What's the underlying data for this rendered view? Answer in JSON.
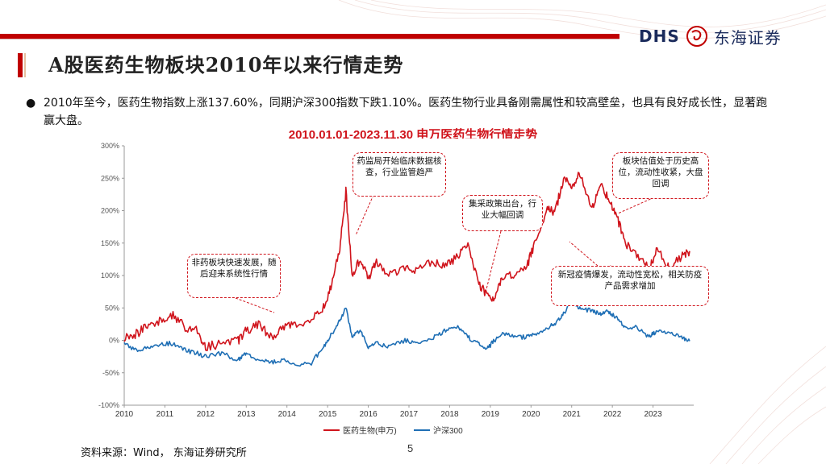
{
  "header": {
    "logo_latin": "DHS",
    "logo_chinese": "东海证券",
    "title": "A股医药生物板块2010年以来行情走势"
  },
  "bullet": {
    "symbol": "●",
    "text": "2010年至今，医药生物指数上涨137.60%，同期沪深300指数下跌1.10%。医药生物行业具备刚需属性和较高壁垒，也具有良好成长性，显著跑赢大盘。"
  },
  "callouts": {
    "c1": "非药板块快速发展，随后迎来系统性行情",
    "c2": "药监局开始临床数据核查，行业监管趋严",
    "c3": "集采政策出台，行业大幅回调",
    "c4": "板块估值处于历史高位，流动性收紧，大盘回调",
    "c5": "新冠疫情爆发，流动性宽松，相关防疫产品需求增加"
  },
  "footer": {
    "source": "资料来源：Wind， 东海证券研究所",
    "page": "5"
  },
  "colors": {
    "red": "#d0141c",
    "blue": "#1f6fb5",
    "brand_navy": "#1b2b5c"
  },
  "chart_data": {
    "type": "line",
    "title": "2010.01.01-2023.11.30 申万医药生物行情走势",
    "xlabel": "",
    "ylabel": "",
    "x_ticks": [
      "2010",
      "2011",
      "2012",
      "2013",
      "2014",
      "2015",
      "2016",
      "2017",
      "2018",
      "2019",
      "2020",
      "2021",
      "2022",
      "2023"
    ],
    "y_ticks": [
      "300%",
      "250%",
      "200%",
      "150%",
      "100%",
      "50%",
      "0%",
      "-50%",
      "-100%"
    ],
    "ylim": [
      -100,
      300
    ],
    "xlim": [
      2010.0,
      2024.0
    ],
    "legend": [
      "医药生物(申万)",
      "沪深300"
    ],
    "legend_position": "bottom",
    "series": [
      {
        "name": "医药生物(申万)",
        "x": [
          2010.0,
          2010.3,
          2010.6,
          2010.9,
          2011.2,
          2011.5,
          2011.8,
          2012.0,
          2012.4,
          2012.8,
          2013.0,
          2013.3,
          2013.6,
          2013.9,
          2014.2,
          2014.6,
          2014.9,
          2015.1,
          2015.3,
          2015.45,
          2015.6,
          2015.8,
          2016.0,
          2016.2,
          2016.5,
          2016.9,
          2017.2,
          2017.6,
          2017.9,
          2018.2,
          2018.45,
          2018.7,
          2018.9,
          2019.1,
          2019.3,
          2019.6,
          2019.9,
          2020.1,
          2020.4,
          2020.6,
          2020.8,
          2021.0,
          2021.2,
          2021.5,
          2021.7,
          2021.9,
          2022.1,
          2022.3,
          2022.6,
          2022.9,
          2023.1,
          2023.4,
          2023.7,
          2023.9
        ],
        "values": [
          5,
          10,
          25,
          30,
          40,
          20,
          15,
          -10,
          -5,
          0,
          15,
          25,
          5,
          20,
          25,
          30,
          50,
          85,
          140,
          230,
          100,
          125,
          95,
          120,
          100,
          110,
          110,
          120,
          115,
          130,
          150,
          90,
          70,
          60,
          100,
          100,
          115,
          150,
          200,
          200,
          250,
          240,
          255,
          200,
          240,
          220,
          195,
          150,
          130,
          110,
          140,
          110,
          130,
          137.6
        ]
      },
      {
        "name": "沪深300",
        "x": [
          2010.0,
          2010.3,
          2010.6,
          2010.9,
          2011.2,
          2011.5,
          2011.8,
          2012.0,
          2012.4,
          2012.8,
          2013.0,
          2013.3,
          2013.6,
          2013.9,
          2014.2,
          2014.6,
          2014.9,
          2015.1,
          2015.3,
          2015.45,
          2015.6,
          2015.8,
          2016.0,
          2016.2,
          2016.5,
          2016.9,
          2017.2,
          2017.6,
          2017.9,
          2018.2,
          2018.45,
          2018.7,
          2018.9,
          2019.1,
          2019.3,
          2019.6,
          2019.9,
          2020.1,
          2020.4,
          2020.6,
          2020.8,
          2021.0,
          2021.2,
          2021.5,
          2021.7,
          2021.9,
          2022.1,
          2022.3,
          2022.6,
          2022.9,
          2023.1,
          2023.4,
          2023.7,
          2023.9
        ],
        "values": [
          -5,
          -15,
          -10,
          -5,
          -5,
          -15,
          -20,
          -25,
          -20,
          -30,
          -20,
          -30,
          -35,
          -30,
          -40,
          -35,
          -10,
          10,
          30,
          50,
          5,
          15,
          -10,
          -5,
          -10,
          0,
          -5,
          5,
          15,
          20,
          5,
          -5,
          -15,
          0,
          10,
          5,
          5,
          10,
          20,
          25,
          40,
          60,
          50,
          45,
          40,
          45,
          35,
          20,
          20,
          5,
          15,
          10,
          5,
          -1.1
        ]
      }
    ]
  }
}
